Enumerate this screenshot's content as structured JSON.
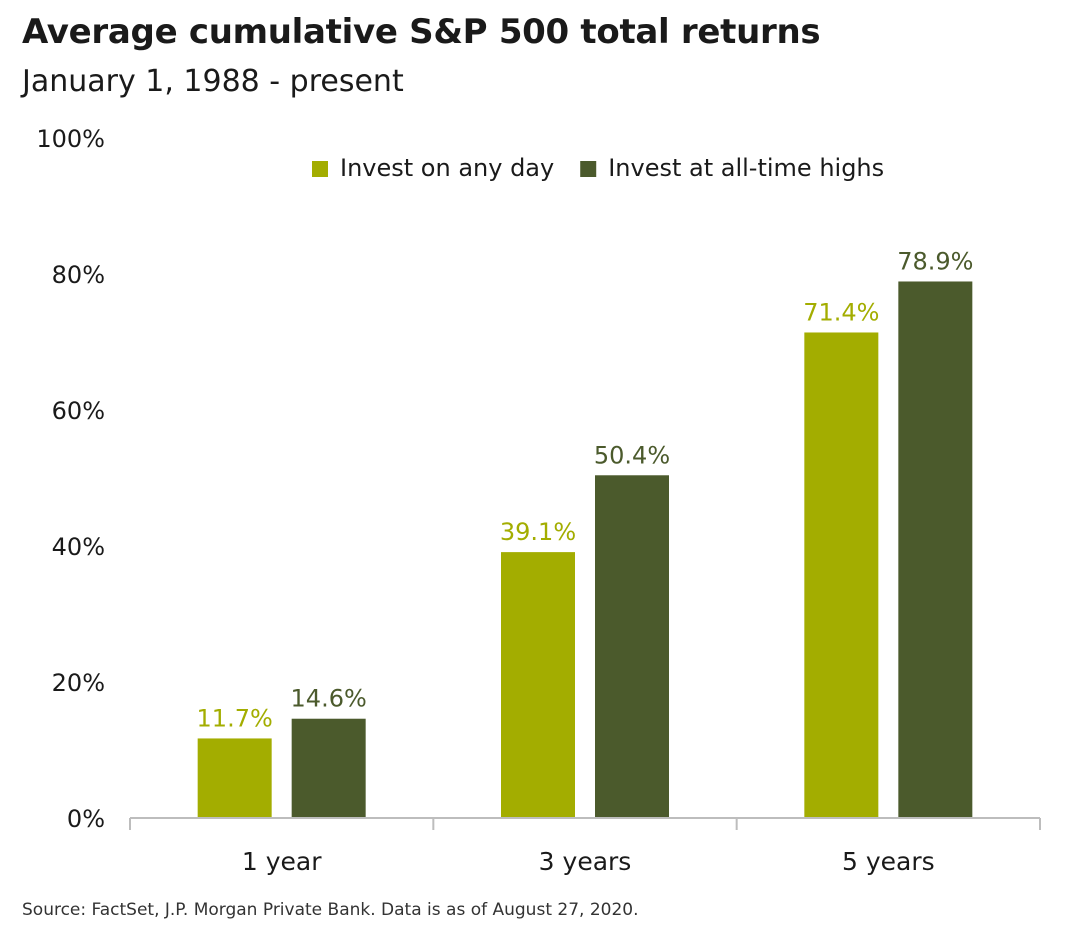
{
  "header": {
    "title": "Average cumulative S&P 500 total returns",
    "subtitle": "January 1, 1988 - present"
  },
  "footer": {
    "source": "Source: FactSet, J.P. Morgan Private Bank. Data is as of August 27, 2020."
  },
  "colors": {
    "any_day": "#a3ad00",
    "ath": "#4b5a2c",
    "axis": "#bdbdbd",
    "text": "#1a1a1a"
  },
  "chart_data": {
    "type": "bar",
    "title": "Average cumulative S&P 500 total returns",
    "subtitle": "January 1, 1988 - present",
    "categories": [
      "1 year",
      "3 years",
      "5 years"
    ],
    "series": [
      {
        "name": "Invest on any day",
        "values": [
          11.7,
          39.1,
          71.4
        ],
        "labels": [
          "11.7%",
          "39.1%",
          "71.4%"
        ],
        "color": "#a3ad00"
      },
      {
        "name": "Invest at all-time highs",
        "values": [
          14.6,
          50.4,
          78.9
        ],
        "labels": [
          "14.6%",
          "50.4%",
          "78.9%"
        ],
        "color": "#4b5a2c"
      }
    ],
    "ylim": [
      0,
      100
    ],
    "yticks": [
      0,
      20,
      40,
      60,
      80,
      100
    ],
    "ytick_labels": [
      "0%",
      "20%",
      "40%",
      "60%",
      "80%",
      "100%"
    ],
    "grid": false,
    "legend_position": "top-center"
  }
}
